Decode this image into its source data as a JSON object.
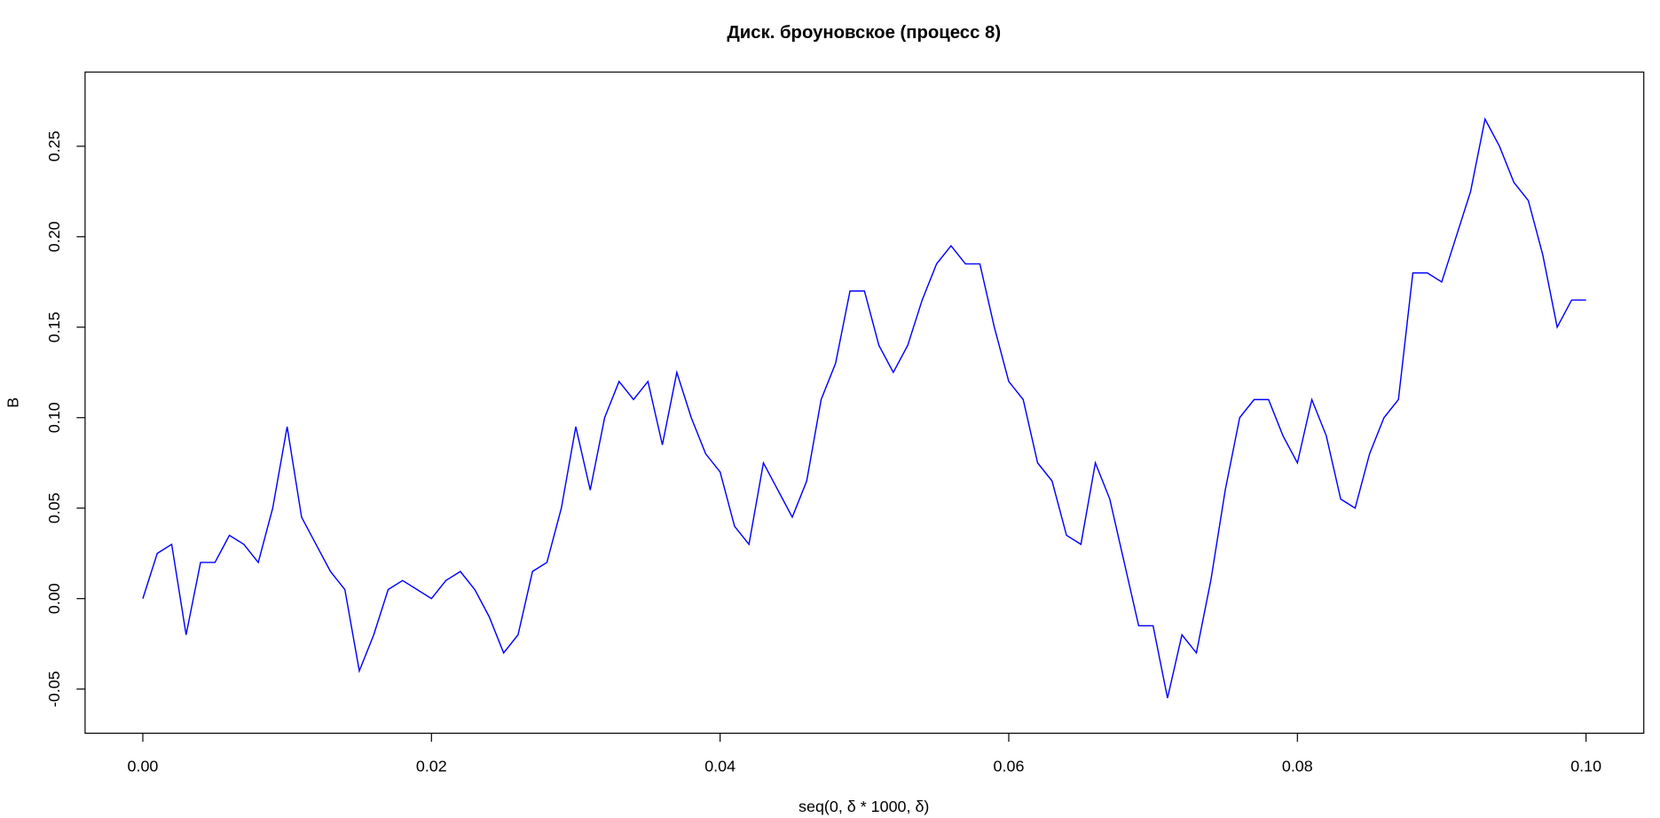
{
  "chart_data": {
    "type": "line",
    "title": "Диск. броуновское (процесс 8)",
    "x_label": "seq(0, δ * 1000, δ)",
    "y_label": "B",
    "color": "#0000ff",
    "grid": false,
    "x": [
      0,
      0.001,
      0.002,
      0.003,
      0.004,
      0.005,
      0.006,
      0.007,
      0.008,
      0.009,
      0.01,
      0.011,
      0.012,
      0.013,
      0.014,
      0.015,
      0.016,
      0.017,
      0.018,
      0.019,
      0.02,
      0.021,
      0.022,
      0.023,
      0.024,
      0.025,
      0.026,
      0.027,
      0.028,
      0.029,
      0.03,
      0.031,
      0.032,
      0.033,
      0.034,
      0.035,
      0.036,
      0.037,
      0.038,
      0.039,
      0.04,
      0.041,
      0.042,
      0.043,
      0.044,
      0.045,
      0.046,
      0.047,
      0.048,
      0.049,
      0.05,
      0.051,
      0.052,
      0.053,
      0.054,
      0.055,
      0.056,
      0.057,
      0.058,
      0.059,
      0.06,
      0.061,
      0.062,
      0.063,
      0.064,
      0.065,
      0.066,
      0.067,
      0.068,
      0.069,
      0.07,
      0.071,
      0.072,
      0.073,
      0.074,
      0.075,
      0.076,
      0.077,
      0.078,
      0.079,
      0.08,
      0.081,
      0.082,
      0.083,
      0.084,
      0.085,
      0.086,
      0.087,
      0.088,
      0.089,
      0.09,
      0.091,
      0.092,
      0.093,
      0.094,
      0.095,
      0.096,
      0.097,
      0.098,
      0.099,
      0.1
    ],
    "values": [
      0,
      0.025,
      0.03,
      -0.02,
      0.02,
      0.02,
      0.035,
      0.03,
      0.02,
      0.05,
      0.095,
      0.045,
      0.03,
      0.015,
      0.005,
      -0.04,
      -0.02,
      0.005,
      0.01,
      0.005,
      0,
      0.01,
      0.015,
      0.005,
      -0.01,
      -0.03,
      -0.02,
      0.015,
      0.02,
      0.05,
      0.095,
      0.06,
      0.1,
      0.12,
      0.11,
      0.12,
      0.085,
      0.125,
      0.1,
      0.08,
      0.07,
      0.04,
      0.03,
      0.075,
      0.06,
      0.045,
      0.065,
      0.11,
      0.13,
      0.17,
      0.17,
      0.14,
      0.125,
      0.14,
      0.165,
      0.185,
      0.195,
      0.185,
      0.185,
      0.15,
      0.12,
      0.11,
      0.075,
      0.065,
      0.035,
      0.03,
      0.075,
      0.055,
      0.02,
      -0.015,
      -0.015,
      -0.055,
      -0.02,
      -0.03,
      0.01,
      0.06,
      0.1,
      0.11,
      0.11,
      0.09,
      0.075,
      0.11,
      0.09,
      0.055,
      0.05,
      0.08,
      0.1,
      0.11,
      0.18,
      0.18,
      0.175,
      0.2,
      0.225,
      0.265,
      0.25,
      0.23,
      0.22,
      0.19,
      0.15,
      0.165,
      0.165
    ],
    "xlim": [
      -0.004,
      0.104
    ],
    "ylim": [
      -0.0744,
      0.291
    ],
    "xticks": [
      {
        "value": 0,
        "label": "0.00"
      },
      {
        "value": 0.02,
        "label": "0.02"
      },
      {
        "value": 0.04,
        "label": "0.04"
      },
      {
        "value": 0.06,
        "label": "0.06"
      },
      {
        "value": 0.08,
        "label": "0.08"
      },
      {
        "value": 0.1,
        "label": "0.10"
      }
    ],
    "yticks": [
      -0.05,
      {
        "value": 0,
        "label": "0.00"
      },
      0.05,
      {
        "value": 0.1,
        "label": "0.10"
      },
      0.15,
      {
        "value": 0.2,
        "label": "0.20"
      },
      0.25
    ]
  }
}
